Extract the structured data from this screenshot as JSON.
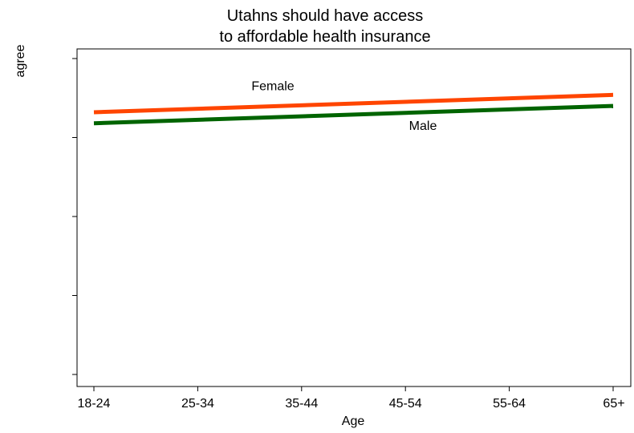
{
  "chart_data": {
    "type": "line",
    "title": [
      "Utahns should have access",
      "to affordable health insurance"
    ],
    "xlabel": "Age",
    "ylabel": "agree",
    "categories": [
      "18-24",
      "25-34",
      "35-44",
      "45-54",
      "55-64",
      "65+"
    ],
    "ylim": [
      0,
      1
    ],
    "ytick_count": 5,
    "grid": false,
    "legend": "inline",
    "series": [
      {
        "name": "Female",
        "color": "#ff4500",
        "start": 0.83,
        "end": 0.885
      },
      {
        "name": "Male",
        "color": "#006400",
        "start": 0.795,
        "end": 0.85
      }
    ]
  }
}
